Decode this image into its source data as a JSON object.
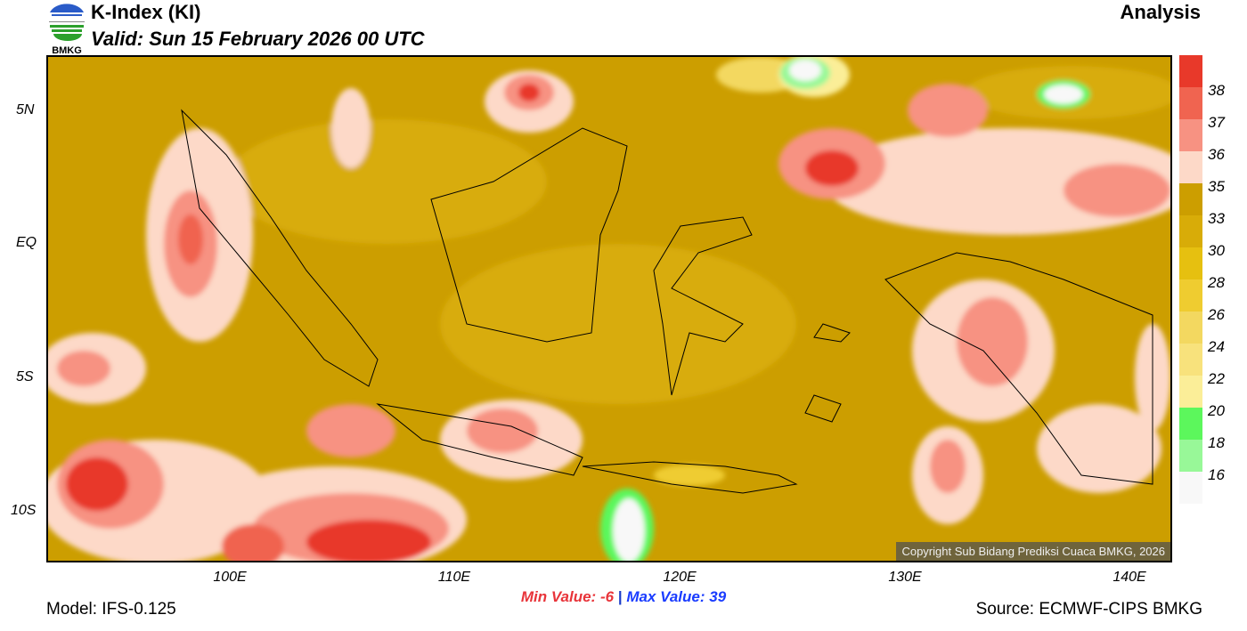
{
  "header": {
    "title": "K-Index (KI)",
    "valid": "Valid: Sun 15 February 2026 00 UTC",
    "product": "Analysis",
    "logo_text": "BMKG"
  },
  "axes": {
    "lat_labels": [
      "5N",
      "EQ",
      "5S",
      "10S"
    ],
    "lon_labels": [
      "100E",
      "110E",
      "120E",
      "130E",
      "140E"
    ]
  },
  "legend": {
    "levels": [
      "38",
      "37",
      "36",
      "35",
      "33",
      "30",
      "28",
      "26",
      "24",
      "22",
      "20",
      "18",
      "16"
    ],
    "colors": [
      "#e8392a",
      "#f06450",
      "#f79282",
      "#fdd9c8",
      "#cc9e00",
      "#d8ac08",
      "#e6c010",
      "#efcc30",
      "#f3d860",
      "#f8e27c",
      "#fbee98",
      "#5cf75c",
      "#98f898",
      "#f8f8f8"
    ]
  },
  "stats": {
    "min_label": "Min Value:",
    "min_value": "-6",
    "separator": "|",
    "max_label": "Max Value:",
    "max_value": "39"
  },
  "footer": {
    "model": "Model: IFS-0.125",
    "source": "Source: ECMWF-CIPS BMKG",
    "copyright": "Copyright Sub Bidang Prediksi Cuaca BMKG, 2026"
  }
}
